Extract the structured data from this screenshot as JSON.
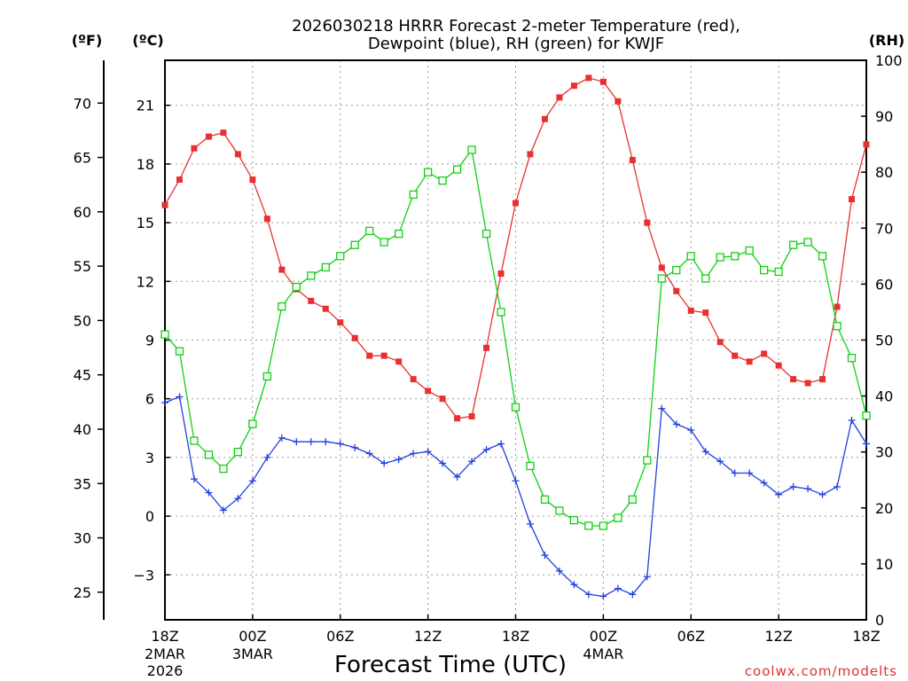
{
  "colors": {
    "temperature": "#e83030",
    "dewpoint": "#2040e0",
    "rh": "#10d010",
    "grid": "#9a9a9a",
    "credit": "#e03030"
  },
  "credit": "coolwx.com/modelts",
  "chart_data": {
    "type": "line",
    "title_line1": "2026030218 HRRR Forecast 2-meter Temperature (red),",
    "title_line2": "Dewpoint (blue), RH (green) for KWJF",
    "xlabel": "Forecast Time (UTC)",
    "x_unit": "hours from 2026-03-02 18Z",
    "x": [
      0,
      1,
      2,
      3,
      4,
      5,
      6,
      7,
      8,
      9,
      10,
      11,
      12,
      13,
      14,
      15,
      16,
      17,
      18,
      19,
      20,
      21,
      22,
      23,
      24,
      25,
      26,
      27,
      28,
      29,
      30,
      31,
      32,
      33,
      34,
      35,
      36,
      37,
      38,
      39,
      40,
      41,
      42,
      43,
      44,
      45,
      46,
      47,
      48
    ],
    "xlim": [
      0,
      48
    ],
    "x_ticks": [
      {
        "x": 0,
        "label": "18Z",
        "date1": "2MAR",
        "date2": "2026"
      },
      {
        "x": 6,
        "label": "00Z",
        "date1": "3MAR",
        "date2": ""
      },
      {
        "x": 12,
        "label": "06Z",
        "date1": "",
        "date2": ""
      },
      {
        "x": 18,
        "label": "12Z",
        "date1": "",
        "date2": ""
      },
      {
        "x": 24,
        "label": "18Z",
        "date1": "",
        "date2": ""
      },
      {
        "x": 30,
        "label": "00Z",
        "date1": "4MAR",
        "date2": ""
      },
      {
        "x": 36,
        "label": "06Z",
        "date1": "",
        "date2": ""
      },
      {
        "x": 42,
        "label": "12Z",
        "date1": "",
        "date2": ""
      },
      {
        "x": 48,
        "label": "18Z",
        "date1": "",
        "date2": ""
      }
    ],
    "y_celsius": {
      "label": "(ºC)",
      "ylim": [
        -5.3,
        23.3
      ],
      "ticks": [
        -3,
        0,
        3,
        6,
        9,
        12,
        15,
        18,
        21
      ],
      "tick_labels": [
        "−3",
        "0",
        "3",
        "6",
        "9",
        "12",
        "15",
        "18",
        "21"
      ]
    },
    "y_fahrenheit": {
      "label": "(ºF)",
      "ticks": [
        25,
        30,
        35,
        40,
        45,
        50,
        55,
        60,
        65,
        70
      ],
      "tick_labels": [
        "25",
        "30",
        "35",
        "40",
        "45",
        "50",
        "55",
        "60",
        "65",
        "70"
      ]
    },
    "y_rh": {
      "label": "(RH)",
      "ylim": [
        0,
        100
      ],
      "ticks": [
        0,
        10,
        20,
        30,
        40,
        50,
        60,
        70,
        80,
        90,
        100
      ],
      "tick_labels": [
        "0",
        "10",
        "20",
        "30",
        "40",
        "50",
        "60",
        "70",
        "80",
        "90",
        "100"
      ]
    },
    "series": [
      {
        "name": "Temperature",
        "axis": "celsius",
        "marker": "filled-square",
        "values": [
          15.9,
          17.2,
          18.8,
          19.4,
          19.6,
          18.5,
          17.2,
          15.2,
          12.6,
          11.6,
          11.0,
          10.6,
          9.9,
          9.1,
          8.2,
          8.2,
          7.9,
          7.0,
          6.4,
          6.0,
          5.0,
          5.1,
          8.6,
          12.4,
          16.0,
          18.5,
          20.3,
          21.4,
          22.0,
          22.4,
          22.2,
          21.2,
          18.2,
          15.0,
          12.7,
          11.5,
          10.5,
          10.4,
          8.9,
          8.2,
          7.9,
          8.3,
          7.7,
          7.0,
          6.8,
          7.0,
          10.7,
          16.2,
          19.0
        ]
      },
      {
        "name": "Dewpoint",
        "axis": "celsius",
        "marker": "plus",
        "values": [
          5.8,
          6.1,
          1.9,
          1.2,
          0.3,
          0.9,
          1.8,
          3.0,
          4.0,
          3.8,
          3.8,
          3.8,
          3.7,
          3.5,
          3.2,
          2.7,
          2.9,
          3.2,
          3.3,
          2.7,
          2.0,
          2.8,
          3.4,
          3.7,
          1.8,
          -0.4,
          -2.0,
          -2.8,
          -3.5,
          -4.0,
          -4.1,
          -3.7,
          -4.0,
          -3.1,
          5.5,
          4.7,
          4.4,
          3.3,
          2.8,
          2.2,
          2.2,
          1.7,
          1.1,
          1.5,
          1.4,
          1.1,
          1.5,
          4.9,
          3.7
        ]
      },
      {
        "name": "RH",
        "axis": "rh",
        "marker": "open-square",
        "values": [
          51,
          48,
          32,
          29.5,
          27,
          30,
          35,
          43.5,
          56,
          59.5,
          61.5,
          63,
          65,
          67,
          69.5,
          67.5,
          69,
          76,
          80,
          78.5,
          80.5,
          84,
          69,
          55,
          38,
          27.5,
          21.5,
          19.5,
          17.8,
          16.8,
          16.8,
          18.2,
          21.5,
          28.5,
          61,
          62.5,
          65,
          61,
          64.8,
          65,
          66,
          62.5,
          62.2,
          67,
          67.5,
          65,
          52.5,
          46.8,
          36.5
        ]
      }
    ]
  }
}
